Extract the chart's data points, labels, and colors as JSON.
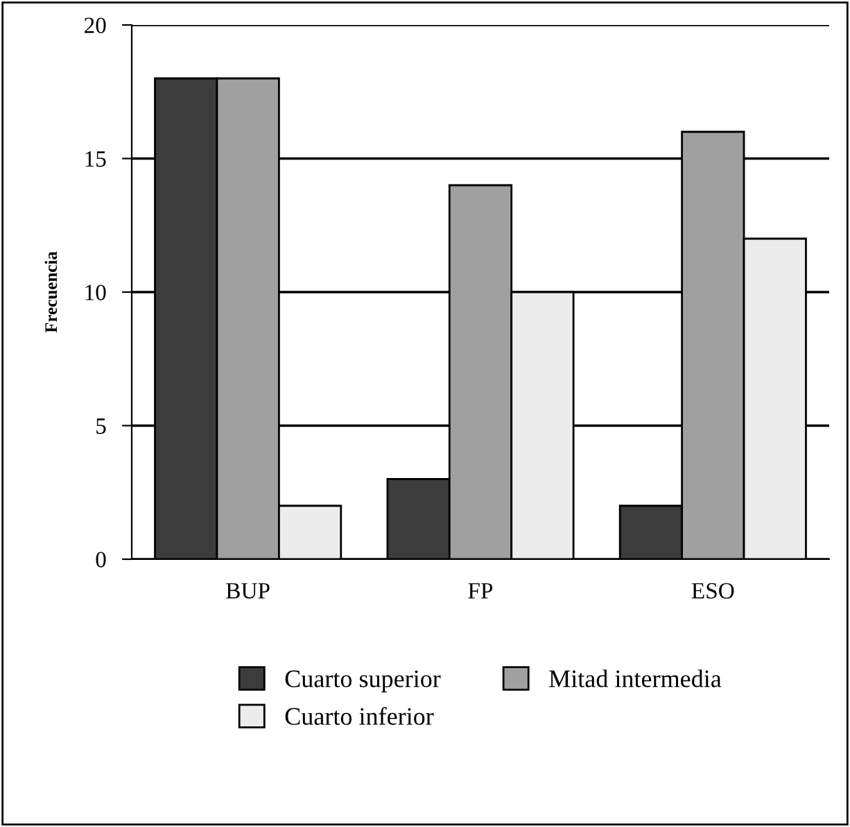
{
  "chart_data": {
    "type": "bar",
    "ylabel": "Frecuencia",
    "categories": [
      "BUP",
      "FP",
      "ESO"
    ],
    "series": [
      {
        "name": "Cuarto superior",
        "color": "#3c3c3c",
        "values": [
          18,
          3,
          2
        ]
      },
      {
        "name": "Mitad intermedia",
        "color": "#a0a0a0",
        "values": [
          18,
          14,
          16
        ]
      },
      {
        "name": "Cuarto inferior",
        "color": "#ececec",
        "values": [
          2,
          10,
          12
        ]
      }
    ],
    "ylim": [
      0,
      20
    ],
    "yticks": [
      0,
      5,
      10,
      15,
      20
    ],
    "grid": "y",
    "legend": "bottom"
  }
}
